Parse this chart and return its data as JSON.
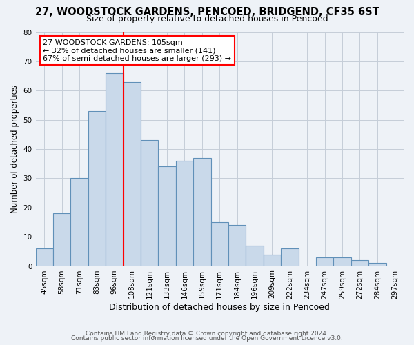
{
  "title1": "27, WOODSTOCK GARDENS, PENCOED, BRIDGEND, CF35 6ST",
  "title2": "Size of property relative to detached houses in Pencoed",
  "xlabel": "Distribution of detached houses by size in Pencoed",
  "ylabel": "Number of detached properties",
  "categories": [
    "45sqm",
    "58sqm",
    "71sqm",
    "83sqm",
    "96sqm",
    "108sqm",
    "121sqm",
    "133sqm",
    "146sqm",
    "159sqm",
    "171sqm",
    "184sqm",
    "196sqm",
    "209sqm",
    "222sqm",
    "234sqm",
    "247sqm",
    "259sqm",
    "272sqm",
    "284sqm",
    "297sqm"
  ],
  "values": [
    6,
    18,
    30,
    53,
    66,
    63,
    43,
    34,
    36,
    37,
    15,
    14,
    7,
    4,
    6,
    0,
    3,
    3,
    2,
    1,
    0
  ],
  "bar_color": "#c9d9ea",
  "bar_edge_color": "#6090b8",
  "property_line_color": "red",
  "property_line_index": 4.5,
  "annotation_line1": "27 WOODSTOCK GARDENS: 105sqm",
  "annotation_line2": "← 32% of detached houses are smaller (141)",
  "annotation_line3": "67% of semi-detached houses are larger (293) →",
  "annotation_box_color": "white",
  "annotation_box_edge": "red",
  "ylim": [
    0,
    80
  ],
  "yticks": [
    0,
    10,
    20,
    30,
    40,
    50,
    60,
    70,
    80
  ],
  "footer1": "Contains HM Land Registry data © Crown copyright and database right 2024.",
  "footer2": "Contains public sector information licensed under the Open Government Licence v3.0.",
  "bg_color": "#eef2f7",
  "grid_color": "#c5cdd8",
  "title1_fontsize": 10.5,
  "title2_fontsize": 9.0,
  "ylabel_fontsize": 8.5,
  "xlabel_fontsize": 9.0,
  "tick_fontsize": 7.5,
  "annot_fontsize": 8.0,
  "footer_fontsize": 6.5
}
